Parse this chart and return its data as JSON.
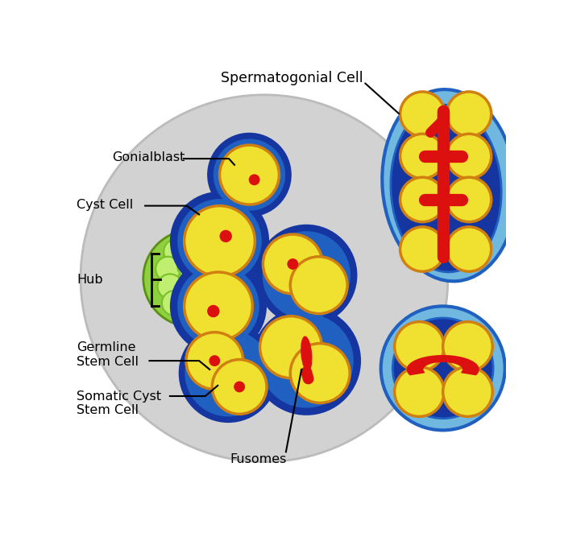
{
  "colors": {
    "background": "#ffffff",
    "gray_bg": "#d0d0d0",
    "dark_blue": "#1535a0",
    "mid_blue": "#2060c0",
    "light_blue": "#70b8e0",
    "lighter_blue": "#a8d8f0",
    "yellow": "#f0e030",
    "yellow_light": "#f8f080",
    "orange_outline": "#d08010",
    "green_light": "#b0e060",
    "green_dark": "#68b020",
    "red": "#dd1010",
    "white": "#ffffff",
    "black": "#000000"
  },
  "labels": {
    "spermatogonial_cell": "Spermatogonial Cell",
    "gonialblast": "Gonialblast",
    "cyst_cell": "Cyst Cell",
    "hub": "Hub",
    "germline_stem_cell": "Germline\nStem Cell",
    "somatic_cyst_stem_cell": "Somatic Cyst\nStem Cell",
    "fusomes": "Fusomes"
  }
}
